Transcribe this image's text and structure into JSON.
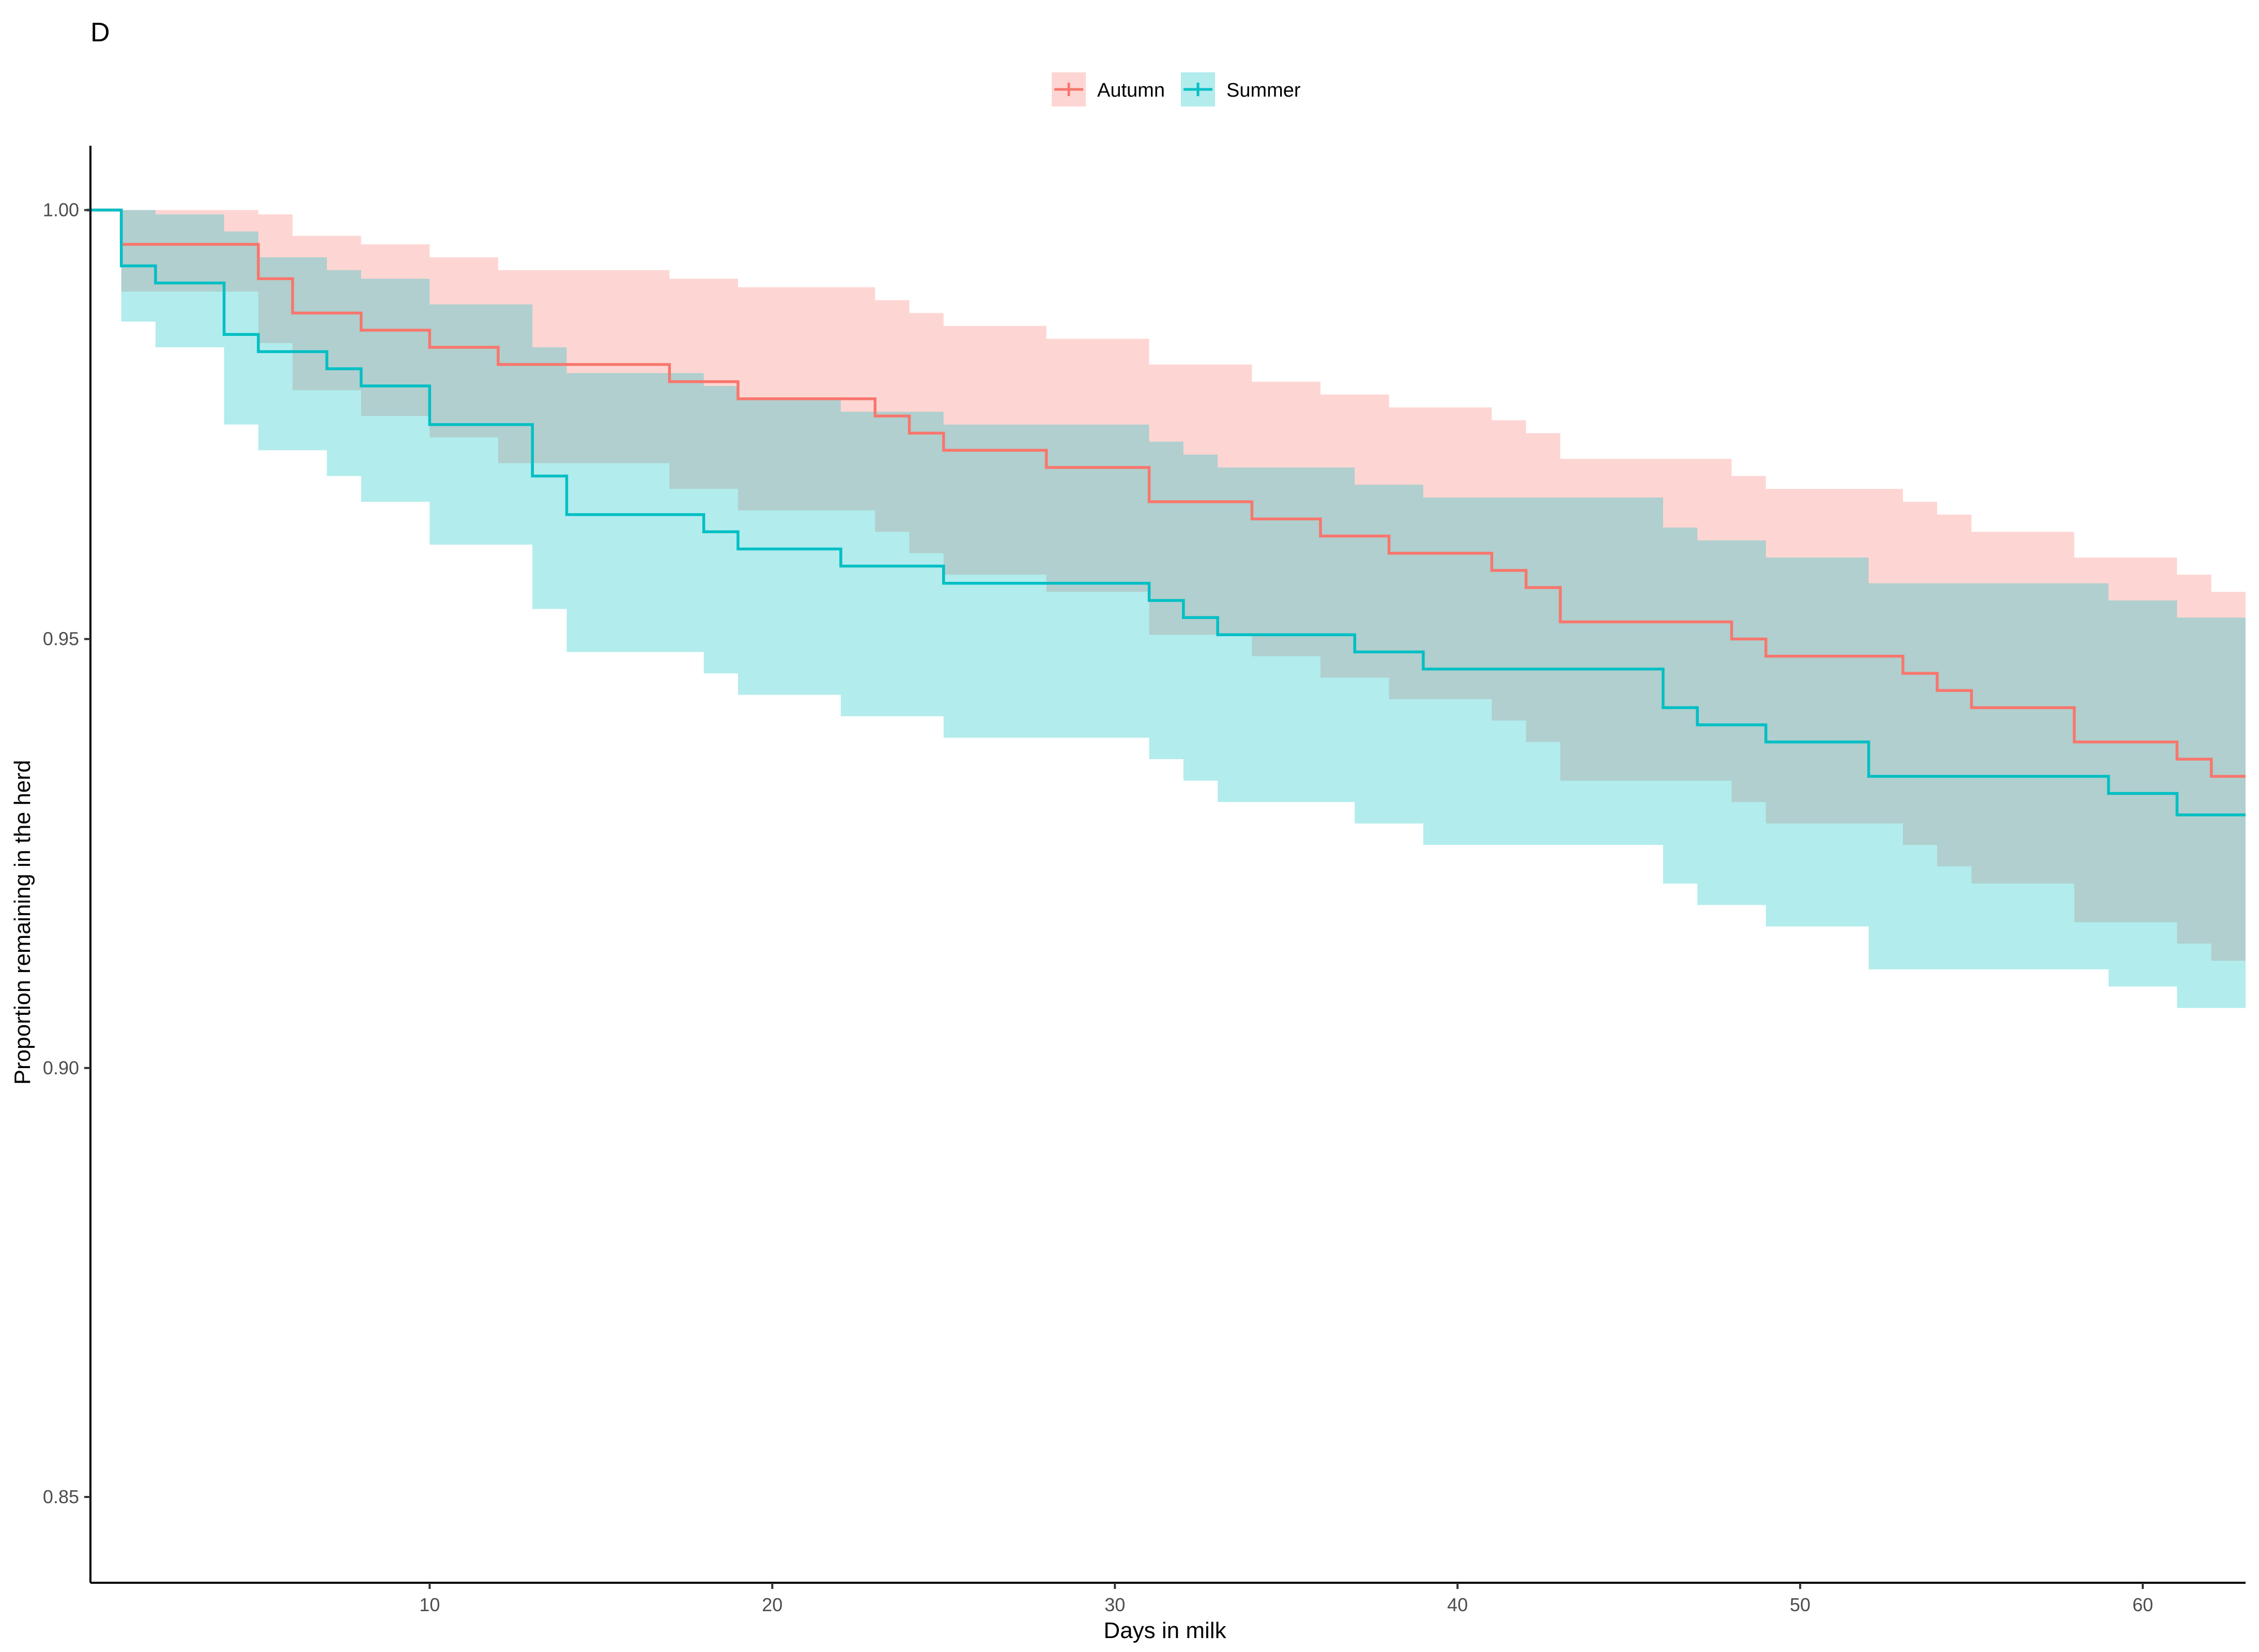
{
  "panel_tag": "D",
  "chart_data": {
    "type": "line",
    "title": "",
    "xlabel": "Days in milk",
    "ylabel": "Proportion remaining in the herd",
    "xlim": [
      0.1,
      63
    ],
    "ylim": [
      0.84,
      1.0075
    ],
    "x_ticks": [
      10,
      20,
      30,
      40,
      50,
      60
    ],
    "y_ticks": [
      0.85,
      0.9,
      0.95,
      1.0
    ],
    "y_tick_labels": [
      "0.85",
      "0.90",
      "0.95",
      "1.00"
    ],
    "grid": false,
    "legend": {
      "position": "top",
      "entries": [
        "Autumn",
        "Summer"
      ]
    },
    "colors": {
      "Autumn": "#F8766D",
      "Summer": "#00BFC4"
    },
    "x_end": 63,
    "series": [
      {
        "name": "Autumn",
        "color": "#F8766D",
        "band_color": "#F8766D",
        "steps": [
          [
            0,
            1.0,
            1.0,
            1.0
          ],
          [
            1,
            0.996,
            1.0,
            0.9905
          ],
          [
            4,
            0.996,
            1.0,
            0.9905
          ],
          [
            5,
            0.992,
            0.9995,
            0.9845
          ],
          [
            6,
            0.988,
            0.997,
            0.979
          ],
          [
            8,
            0.986,
            0.996,
            0.976
          ],
          [
            10,
            0.984,
            0.9945,
            0.9735
          ],
          [
            12,
            0.982,
            0.993,
            0.9705
          ],
          [
            17,
            0.98,
            0.992,
            0.9675
          ],
          [
            19,
            0.978,
            0.991,
            0.965
          ],
          [
            23,
            0.976,
            0.9895,
            0.9625
          ],
          [
            24,
            0.974,
            0.988,
            0.96
          ],
          [
            25,
            0.972,
            0.9865,
            0.9575
          ],
          [
            28,
            0.97,
            0.985,
            0.9555
          ],
          [
            31,
            0.966,
            0.982,
            0.9505
          ],
          [
            34,
            0.964,
            0.98,
            0.948
          ],
          [
            36,
            0.962,
            0.9785,
            0.9455
          ],
          [
            38,
            0.96,
            0.977,
            0.943
          ],
          [
            41,
            0.958,
            0.9755,
            0.9405
          ],
          [
            42,
            0.956,
            0.974,
            0.938
          ],
          [
            43,
            0.952,
            0.971,
            0.9335
          ],
          [
            48,
            0.95,
            0.969,
            0.931
          ],
          [
            49,
            0.948,
            0.9675,
            0.9285
          ],
          [
            53,
            0.946,
            0.966,
            0.926
          ],
          [
            54,
            0.944,
            0.9645,
            0.9235
          ],
          [
            55,
            0.942,
            0.9625,
            0.9215
          ],
          [
            58,
            0.938,
            0.9595,
            0.917
          ],
          [
            61,
            0.936,
            0.9575,
            0.9145
          ],
          [
            62,
            0.934,
            0.9555,
            0.9125
          ]
        ]
      },
      {
        "name": "Summer",
        "color": "#00BFC4",
        "band_color": "#00BFC4",
        "steps": [
          [
            0,
            1.0,
            1.0,
            1.0
          ],
          [
            1,
            0.9935,
            1.0,
            0.987
          ],
          [
            2,
            0.9915,
            0.9995,
            0.984
          ],
          [
            4,
            0.9855,
            0.9975,
            0.975
          ],
          [
            5,
            0.9835,
            0.9945,
            0.972
          ],
          [
            7,
            0.9815,
            0.993,
            0.969
          ],
          [
            8,
            0.9795,
            0.992,
            0.966
          ],
          [
            10,
            0.975,
            0.989,
            0.961
          ],
          [
            13,
            0.969,
            0.984,
            0.9535
          ],
          [
            14,
            0.9645,
            0.981,
            0.9485
          ],
          [
            18,
            0.9625,
            0.9795,
            0.946
          ],
          [
            19,
            0.9605,
            0.978,
            0.9435
          ],
          [
            22,
            0.9585,
            0.9765,
            0.941
          ],
          [
            25,
            0.9565,
            0.975,
            0.9385
          ],
          [
            31,
            0.9545,
            0.973,
            0.936
          ],
          [
            32,
            0.9525,
            0.9715,
            0.9335
          ],
          [
            33,
            0.9505,
            0.97,
            0.931
          ],
          [
            37,
            0.9485,
            0.968,
            0.9285
          ],
          [
            39,
            0.9465,
            0.9665,
            0.926
          ],
          [
            46,
            0.942,
            0.963,
            0.9215
          ],
          [
            47,
            0.94,
            0.9615,
            0.919
          ],
          [
            49,
            0.938,
            0.9595,
            0.9165
          ],
          [
            52,
            0.934,
            0.9565,
            0.9115
          ],
          [
            59,
            0.932,
            0.9545,
            0.9095
          ],
          [
            61,
            0.9295,
            0.9525,
            0.907
          ]
        ]
      }
    ]
  }
}
